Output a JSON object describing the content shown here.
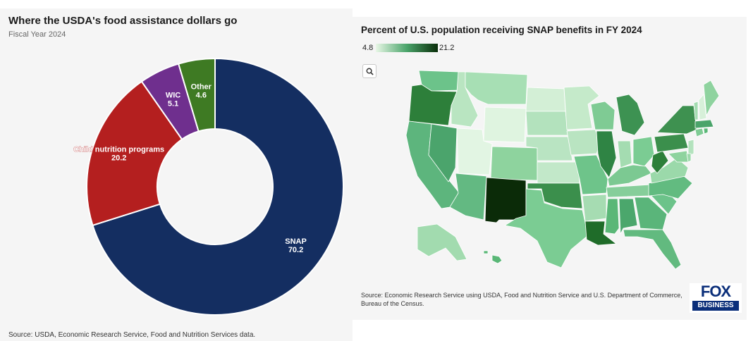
{
  "colors": {
    "snap": "#142e61",
    "child_nutrition": "#b41f1f",
    "wic": "#6f2f8e",
    "other": "#3e7a23",
    "scale_low": "#e8f7e6",
    "scale_high": "#0a2e0a",
    "fox_blue": "#0b2f7a"
  },
  "left_chart": {
    "title": "Where the USDA's food assistance dollars go",
    "subtitle": "Fiscal Year 2024",
    "source": "Source: USDA, Economic Research Service, Food and Nutrition Services data."
  },
  "right_chart": {
    "title": "Percent of U.S. population receiving SNAP benefits in FY 2024",
    "scale_min": "4.8",
    "scale_max": "21.2",
    "search_icon": "search-icon",
    "source": "Source: Economic Research Service using USDA, Food and Nutrition Service and U.S. Department of Commerce, Bureau of the Census."
  },
  "logo": {
    "top": "FOX",
    "bottom": "BUSINESS"
  },
  "chart_data": [
    {
      "type": "pie",
      "title": "Where the USDA's food assistance dollars go",
      "subtitle": "Fiscal Year 2024",
      "categories": [
        "SNAP",
        "Child nutrition programs",
        "WIC",
        "Other"
      ],
      "values": [
        70.2,
        20.2,
        5.1,
        4.6
      ],
      "value_labels": [
        "70.2",
        "20.2",
        "5.1",
        "4.6"
      ],
      "donut": true
    },
    {
      "type": "heatmap",
      "title": "Percent of U.S. population receiving SNAP benefits in FY 2024",
      "scale": [
        4.8,
        21.2
      ],
      "note": "Choropleth map of U.S. states; New Mexico is the darkest state (highest share)."
    }
  ]
}
